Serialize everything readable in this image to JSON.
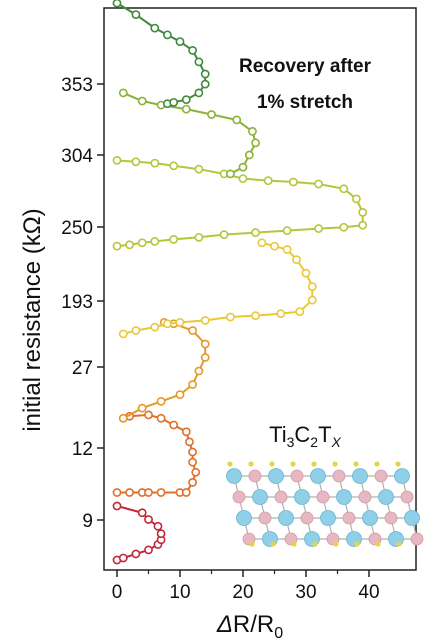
{
  "chart_data": {
    "type": "line",
    "xlabel": "ΔR/R0",
    "ylabel": "initial resistance (kΩ)",
    "xlim": [
      -2,
      46
    ],
    "x_ticks": [
      0,
      10,
      20,
      30,
      40
    ],
    "y_ticks": [
      "353",
      "304",
      "250",
      "193",
      "27",
      "12",
      "9"
    ],
    "annotation": [
      "Recovery after",
      "1% stretch"
    ],
    "formula_label": "Ti3C2TX",
    "series": [
      {
        "color": "#c0283a",
        "points": [
          [
            0,
            0.0
          ],
          [
            1,
            0.03
          ],
          [
            3,
            0.09
          ],
          [
            5,
            0.15
          ],
          [
            6.5,
            0.23
          ],
          [
            7,
            0.3
          ],
          [
            7,
            0.39
          ],
          [
            6.5,
            0.5
          ],
          [
            5,
            0.6
          ],
          [
            4,
            0.7
          ],
          [
            0,
            0.8
          ]
        ]
      },
      {
        "color": "#e06f2a",
        "points": [
          [
            0,
            1.0
          ],
          [
            2,
            1.0
          ],
          [
            4,
            1.0
          ],
          [
            5,
            1.0
          ],
          [
            7,
            1.0
          ],
          [
            10,
            1.0
          ],
          [
            11,
            1.0
          ],
          [
            12,
            1.15
          ],
          [
            12.5,
            1.3
          ],
          [
            12,
            1.45
          ],
          [
            12,
            1.6
          ],
          [
            11.5,
            1.75
          ],
          [
            11,
            1.9
          ],
          [
            9,
            2.0
          ],
          [
            7,
            2.1
          ],
          [
            5,
            2.15
          ],
          [
            2,
            2.13
          ],
          [
            1,
            2.1
          ]
        ]
      },
      {
        "color": "#e39a2a",
        "points": [
          [
            1,
            2.1
          ],
          [
            4,
            2.25
          ],
          [
            7,
            2.35
          ],
          [
            10,
            2.45
          ],
          [
            12,
            2.6
          ],
          [
            13,
            2.8
          ],
          [
            14,
            3.0
          ],
          [
            14,
            3.2
          ],
          [
            12,
            3.4
          ],
          [
            9,
            3.5
          ],
          [
            7.5,
            3.52
          ]
        ]
      },
      {
        "color": "#e8c93a",
        "points": [
          [
            1,
            3.35
          ],
          [
            3,
            3.4
          ],
          [
            6,
            3.45
          ],
          [
            8,
            3.5
          ],
          [
            10,
            3.52
          ],
          [
            14,
            3.55
          ],
          [
            18,
            3.6
          ],
          [
            22,
            3.62
          ],
          [
            26,
            3.65
          ],
          [
            29,
            3.68
          ],
          [
            31,
            3.85
          ],
          [
            31,
            4.05
          ],
          [
            30,
            4.25
          ],
          [
            28.5,
            4.45
          ],
          [
            27,
            4.6
          ],
          [
            25,
            4.65
          ],
          [
            23,
            4.7
          ]
        ]
      },
      {
        "color": "#b7c53a",
        "points": [
          [
            0,
            4.65
          ],
          [
            2,
            4.67
          ],
          [
            4,
            4.7
          ],
          [
            6,
            4.72
          ],
          [
            9,
            4.75
          ],
          [
            13,
            4.78
          ],
          [
            17,
            4.82
          ],
          [
            22,
            4.85
          ],
          [
            27,
            4.88
          ],
          [
            32,
            4.91
          ],
          [
            36,
            4.93
          ],
          [
            39,
            4.96
          ],
          [
            39,
            5.15
          ],
          [
            38,
            5.35
          ],
          [
            36,
            5.5
          ],
          [
            32,
            5.57
          ],
          [
            28,
            5.6
          ],
          [
            24,
            5.62
          ],
          [
            20,
            5.65
          ],
          [
            17,
            5.72
          ],
          [
            13,
            5.79
          ],
          [
            9,
            5.84
          ],
          [
            6,
            5.88
          ],
          [
            3,
            5.9
          ],
          [
            0,
            5.92
          ]
        ]
      },
      {
        "color": "#8bb236",
        "points": [
          [
            18,
            5.72
          ],
          [
            20,
            5.82
          ],
          [
            21,
            6.0
          ],
          [
            22,
            6.18
          ],
          [
            21.5,
            6.35
          ],
          [
            19,
            6.52
          ],
          [
            15,
            6.6
          ],
          [
            11,
            6.68
          ],
          [
            7,
            6.74
          ],
          [
            4,
            6.8
          ],
          [
            1,
            6.92
          ]
        ]
      },
      {
        "color": "#3e8a3c",
        "points": [
          [
            8,
            6.76
          ],
          [
            9,
            6.78
          ],
          [
            11,
            6.82
          ],
          [
            13,
            6.92
          ],
          [
            14,
            7.05
          ],
          [
            14,
            7.2
          ],
          [
            13,
            7.38
          ],
          [
            12,
            7.55
          ],
          [
            10,
            7.68
          ],
          [
            8,
            7.78
          ],
          [
            6,
            7.88
          ],
          [
            3,
            8.08
          ],
          [
            0,
            8.25
          ]
        ]
      }
    ]
  }
}
